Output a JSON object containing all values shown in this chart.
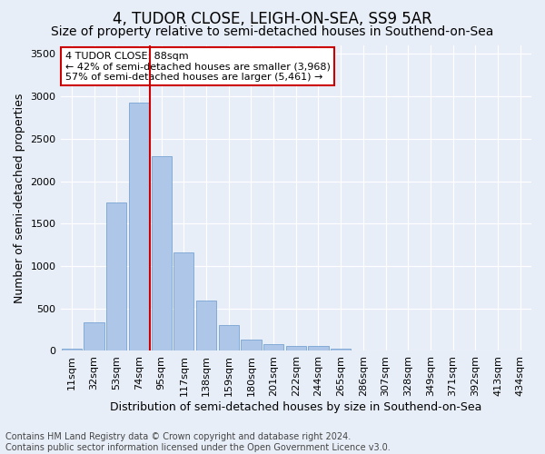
{
  "title": "4, TUDOR CLOSE, LEIGH-ON-SEA, SS9 5AR",
  "subtitle": "Size of property relative to semi-detached houses in Southend-on-Sea",
  "xlabel": "Distribution of semi-detached houses by size in Southend-on-Sea",
  "ylabel": "Number of semi-detached properties",
  "categories": [
    "11sqm",
    "32sqm",
    "53sqm",
    "74sqm",
    "95sqm",
    "117sqm",
    "138sqm",
    "159sqm",
    "180sqm",
    "201sqm",
    "222sqm",
    "244sqm",
    "265sqm",
    "286sqm",
    "307sqm",
    "328sqm",
    "349sqm",
    "371sqm",
    "392sqm",
    "413sqm",
    "434sqm"
  ],
  "values": [
    30,
    340,
    1750,
    2930,
    2290,
    1160,
    590,
    305,
    130,
    75,
    60,
    55,
    30,
    0,
    0,
    0,
    0,
    0,
    0,
    0,
    0
  ],
  "bar_color": "#aec6e8",
  "bar_edge_color": "#6699cc",
  "highlight_bar_index": 4,
  "highlight_color": "#cc0000",
  "annotation_text": "4 TUDOR CLOSE: 88sqm\n← 42% of semi-detached houses are smaller (3,968)\n57% of semi-detached houses are larger (5,461) →",
  "annotation_box_color": "#ffffff",
  "annotation_box_edge": "#cc0000",
  "ylim": [
    0,
    3600
  ],
  "yticks": [
    0,
    500,
    1000,
    1500,
    2000,
    2500,
    3000,
    3500
  ],
  "footer_line1": "Contains HM Land Registry data © Crown copyright and database right 2024.",
  "footer_line2": "Contains public sector information licensed under the Open Government Licence v3.0.",
  "bg_color": "#e8eef8",
  "plot_bg_color": "#e8eef8",
  "grid_color": "#ffffff",
  "title_fontsize": 12,
  "subtitle_fontsize": 10,
  "axis_label_fontsize": 9,
  "tick_fontsize": 8,
  "footer_fontsize": 7
}
